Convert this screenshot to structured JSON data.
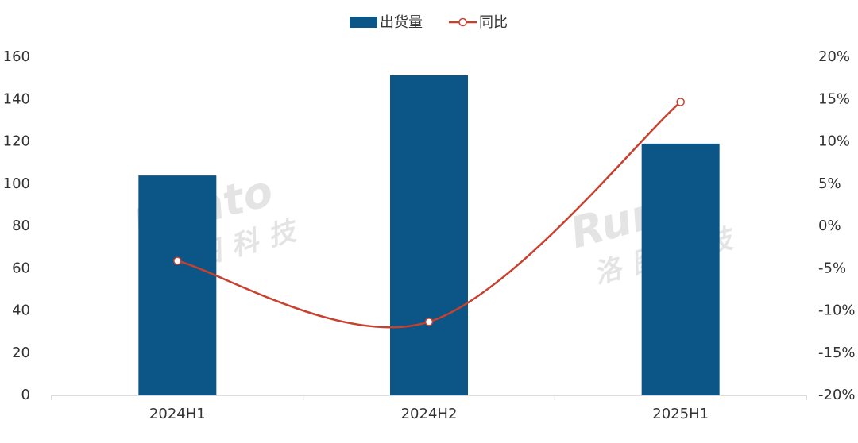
{
  "chart_data": {
    "type": "bar-line",
    "categories": [
      "2024H1",
      "2024H2",
      "2025H1"
    ],
    "series": [
      {
        "name": "出货量",
        "type": "bar",
        "color": "#0b5587",
        "values": [
          104.0,
          151.4,
          119.1
        ]
      },
      {
        "name": "同比",
        "type": "line",
        "color": "#c8402e",
        "axis": "y2",
        "values": [
          -4.1,
          -11.3,
          14.7
        ]
      }
    ],
    "ylim": [
      0,
      160
    ],
    "yticks": [
      0,
      20,
      40,
      60,
      80,
      100,
      120,
      140,
      160
    ],
    "y2lim": [
      -20,
      20
    ],
    "y2ticks": [
      {
        "value": -20,
        "label": "-20%"
      },
      {
        "value": -15,
        "label": "-15%"
      },
      {
        "value": -10,
        "label": "-10%"
      },
      {
        "value": -5,
        "label": "-5%"
      },
      {
        "value": 0,
        "label": "0%"
      },
      {
        "value": 5,
        "label": "5%"
      },
      {
        "value": 10,
        "label": "10%"
      },
      {
        "value": 15,
        "label": "15%"
      },
      {
        "value": 20,
        "label": "20%"
      }
    ],
    "grid": false,
    "legend": "top",
    "watermark": [
      "Runto",
      "洛图科技"
    ]
  }
}
